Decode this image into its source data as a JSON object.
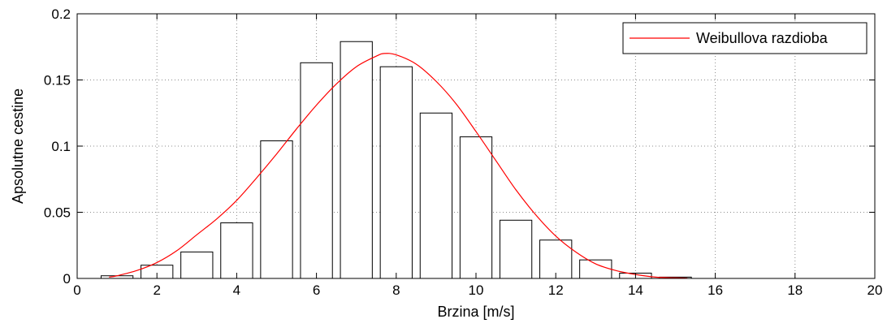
{
  "chart_data": {
    "type": "bar",
    "xlabel": "Brzina [m/s]",
    "ylabel": "Apsolutne cestine",
    "xlim": [
      0,
      20
    ],
    "ylim": [
      0,
      0.2
    ],
    "grid": true,
    "legend_position": "top-right",
    "x_ticks": [
      0,
      2,
      4,
      6,
      8,
      10,
      12,
      14,
      16,
      18,
      20
    ],
    "x_tick_labels": [
      "0",
      "2",
      "4",
      "6",
      "8",
      "10",
      "12",
      "14",
      "16",
      "18",
      "20"
    ],
    "y_ticks": [
      0,
      0.05,
      0.1,
      0.15,
      0.2
    ],
    "y_tick_labels": [
      "0",
      "0.05",
      "0.1",
      "0.15",
      "0.2"
    ],
    "bar_width": 0.8,
    "bar_centers": [
      1,
      2,
      3,
      4,
      5,
      6,
      7,
      8,
      9,
      10,
      11,
      12,
      13,
      14,
      15
    ],
    "bar_values": [
      0.002,
      0.01,
      0.02,
      0.042,
      0.104,
      0.163,
      0.179,
      0.16,
      0.125,
      0.107,
      0.044,
      0.029,
      0.014,
      0.004,
      0.001
    ],
    "series": [
      {
        "name": "Weibullova razdioba",
        "type": "line",
        "color": "#ff0000",
        "x": [
          0.8,
          1,
          1.5,
          2,
          2.5,
          3,
          3.5,
          4,
          4.5,
          5,
          5.5,
          6,
          6.5,
          7,
          7.5,
          7.7,
          8,
          8.5,
          9,
          9.5,
          10,
          10.5,
          11,
          11.5,
          12,
          12.5,
          13,
          13.5,
          14,
          14.5,
          15,
          15.3
        ],
        "y": [
          0.001,
          0.002,
          0.006,
          0.012,
          0.021,
          0.033,
          0.045,
          0.059,
          0.076,
          0.094,
          0.113,
          0.131,
          0.147,
          0.16,
          0.168,
          0.17,
          0.169,
          0.162,
          0.149,
          0.132,
          0.111,
          0.089,
          0.067,
          0.048,
          0.032,
          0.02,
          0.011,
          0.006,
          0.003,
          0.001,
          0.0005,
          0.0002
        ]
      }
    ],
    "colors": {
      "bar_fill": "#ffffff",
      "bar_stroke": "#000000",
      "grid": "#8c8c8c",
      "curve": "#ff0000"
    }
  }
}
